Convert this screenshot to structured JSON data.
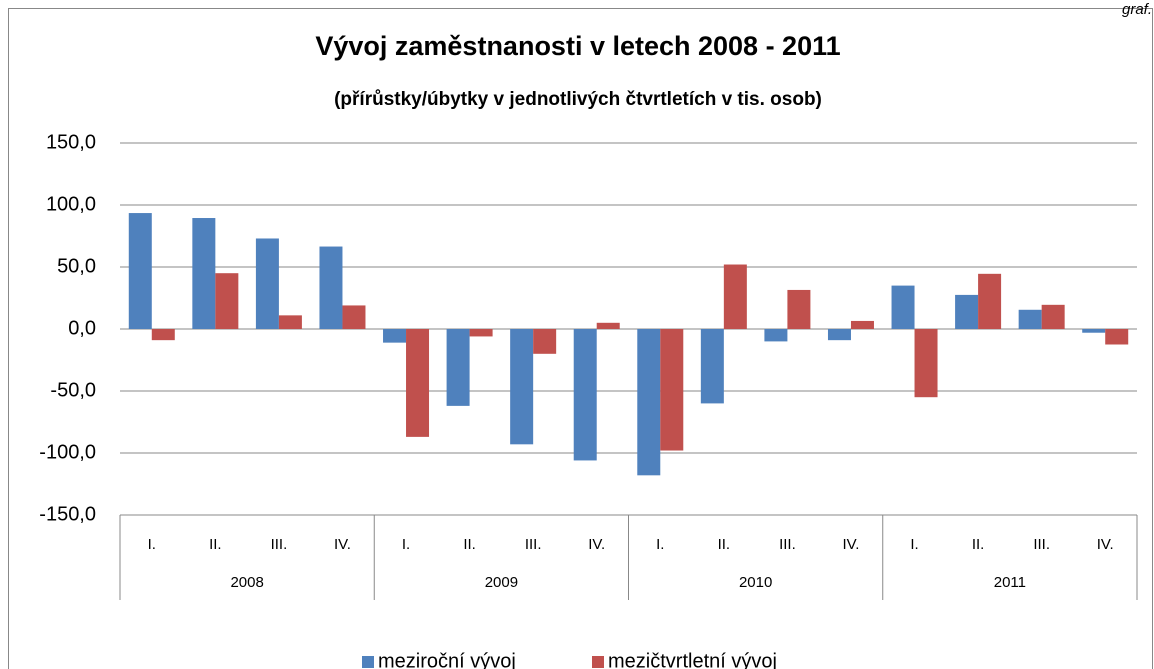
{
  "corner_label": "graf.",
  "chart_data": {
    "type": "bar",
    "title": "Vývoj zaměstnanosti v letech 2008 - 2011",
    "subtitle": "(přírůstky/úbytky v jednotlivých čtvrtletích v tis. osob)",
    "categories": [
      "I.",
      "II.",
      "III.",
      "IV.",
      "I.",
      "II.",
      "III.",
      "IV.",
      "I.",
      "II.",
      "III.",
      "IV.",
      "I.",
      "II.",
      "III.",
      "IV."
    ],
    "groups": [
      "2008",
      "2009",
      "2010",
      "2011"
    ],
    "series": [
      {
        "name": "meziroční vývoj",
        "color": "#4f81bd",
        "values": [
          93.5,
          89.5,
          73,
          66.5,
          -11,
          -62,
          -93,
          -106,
          -118,
          -60,
          -10,
          -9,
          35,
          27.5,
          15.5,
          -3
        ]
      },
      {
        "name": "mezičtvrtletní vývoj",
        "color": "#c0504d",
        "values": [
          -9,
          45,
          11,
          19,
          -87,
          -6,
          -20,
          5,
          -98,
          52,
          31.5,
          6.5,
          -55,
          44.5,
          19.5,
          -12.5
        ]
      }
    ],
    "ylim": [
      -150,
      150
    ],
    "yticks": [
      {
        "value": -150,
        "label": "-150,0"
      },
      {
        "value": -100,
        "label": "-100,0"
      },
      {
        "value": -50,
        "label": "-50,0"
      },
      {
        "value": 0,
        "label": "0,0"
      },
      {
        "value": 50,
        "label": "50,0"
      },
      {
        "value": 100,
        "label": "100,0"
      },
      {
        "value": 150,
        "label": "150,0"
      }
    ],
    "grid": true,
    "legend": "bottom"
  }
}
